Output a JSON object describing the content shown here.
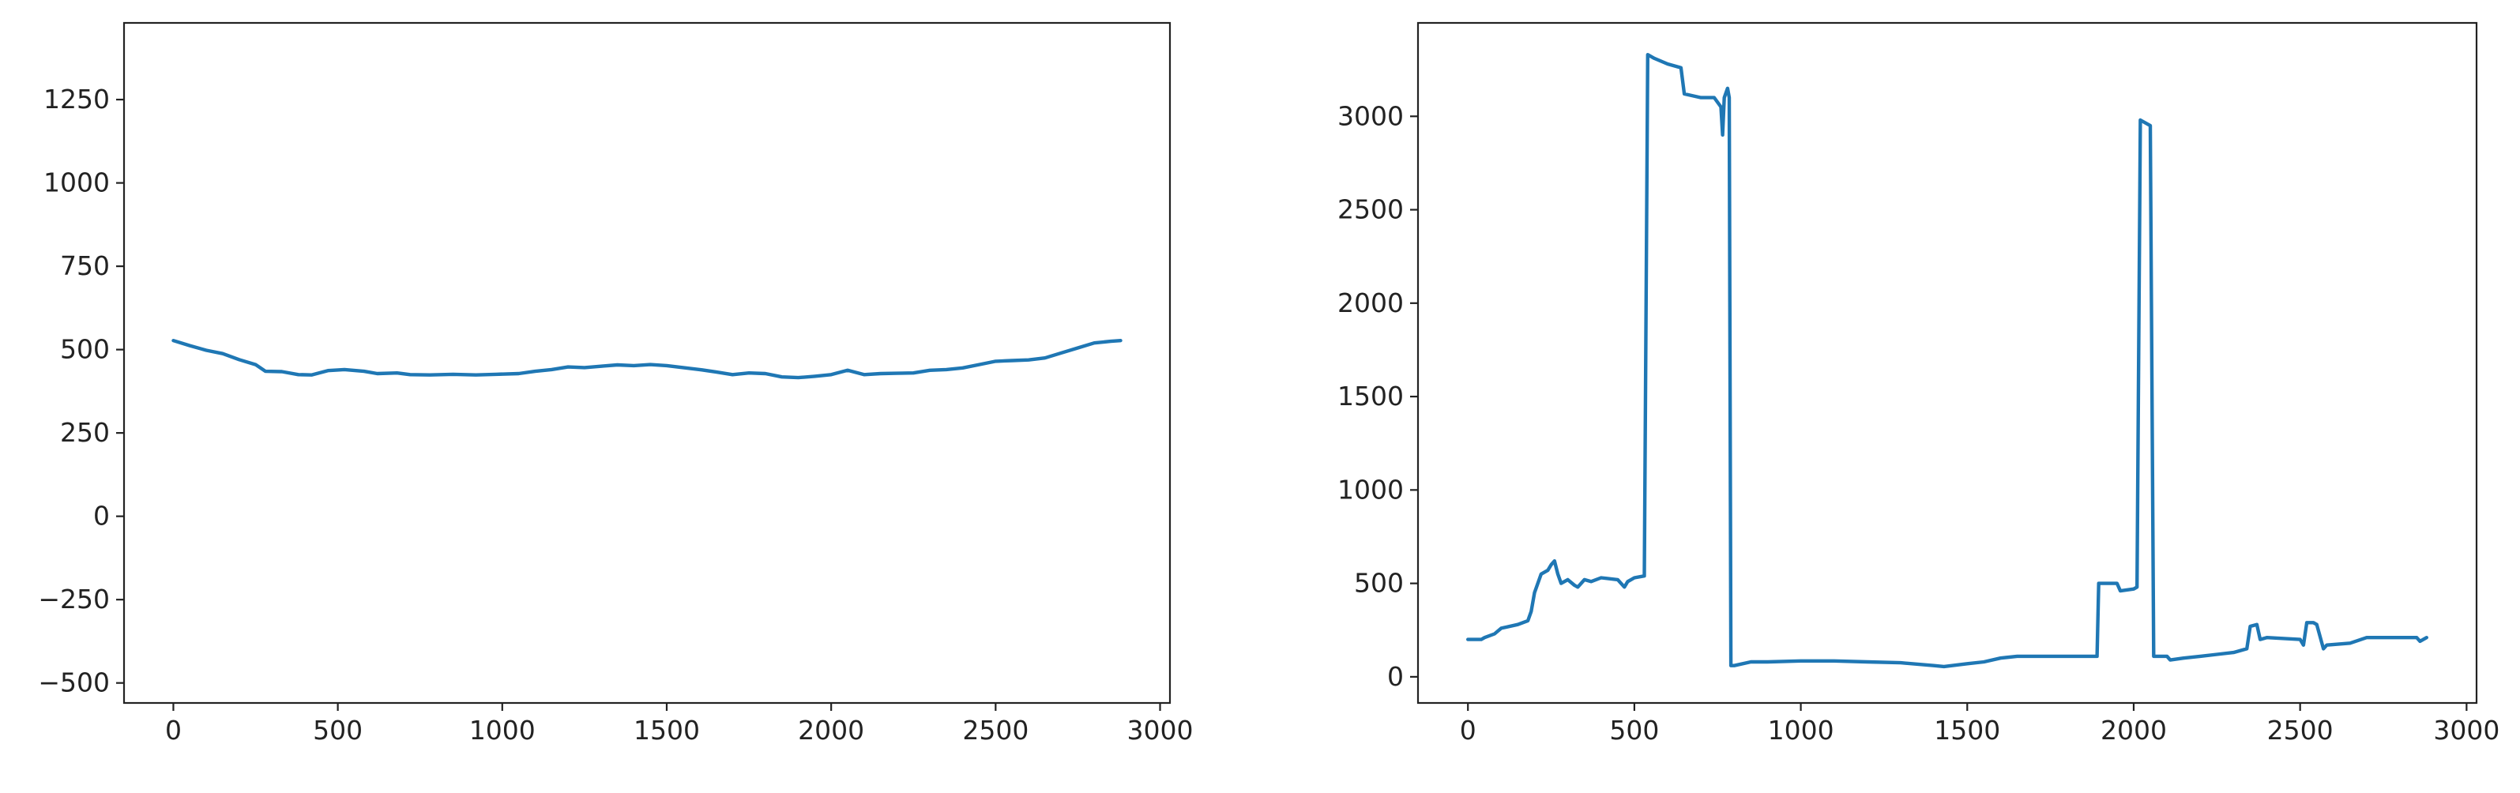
{
  "chart_data": [
    {
      "type": "line",
      "title": "",
      "xlabel": "",
      "ylabel": "",
      "xlim": [
        -150,
        3030
      ],
      "ylim": [
        -560,
        1480
      ],
      "xticks": [
        0,
        500,
        1000,
        1500,
        2000,
        2500,
        3000
      ],
      "xtick_labels": [
        "0",
        "500",
        "1000",
        "1500",
        "2000",
        "2500",
        "3000"
      ],
      "yticks": [
        -500,
        -250,
        0,
        250,
        500,
        750,
        1000,
        1250
      ],
      "ytick_labels": [
        "−500",
        "−250",
        "0",
        "250",
        "500",
        "750",
        "1000",
        "1250"
      ],
      "grid": false,
      "color": "#1f77b4",
      "series": [
        {
          "x": [
            0,
            50,
            100,
            150,
            200,
            250,
            280,
            330,
            380,
            420,
            470,
            520,
            580,
            620,
            680,
            720,
            780,
            850,
            920,
            980,
            1050,
            1100,
            1150,
            1200,
            1250,
            1300,
            1350,
            1400,
            1450,
            1500,
            1550,
            1600,
            1650,
            1700,
            1750,
            1800,
            1850,
            1900,
            1950,
            2000,
            2050,
            2100,
            2150,
            2200,
            2250,
            2300,
            2350,
            2400,
            2450,
            2500,
            2550,
            2600,
            2650,
            2700,
            2750,
            2800,
            2850,
            2880
          ],
          "y": [
            527,
            512,
            498,
            488,
            470,
            455,
            435,
            434,
            425,
            424,
            437,
            440,
            435,
            428,
            430,
            425,
            424,
            426,
            424,
            426,
            428,
            435,
            440,
            448,
            446,
            450,
            454,
            452,
            455,
            452,
            446,
            440,
            433,
            425,
            430,
            428,
            418,
            416,
            420,
            425,
            438,
            425,
            428,
            429,
            430,
            438,
            440,
            445,
            455,
            465,
            467,
            469,
            475,
            490,
            505,
            520,
            525,
            527
          ]
        }
      ]
    },
    {
      "type": "line",
      "title": "",
      "xlabel": "",
      "ylabel": "",
      "xlim": [
        -150,
        3030
      ],
      "ylim": [
        -140,
        3500
      ],
      "xticks": [
        0,
        500,
        1000,
        1500,
        2000,
        2500,
        3000
      ],
      "xtick_labels": [
        "0",
        "500",
        "1000",
        "1500",
        "2000",
        "2500",
        "3000"
      ],
      "yticks": [
        0,
        500,
        1000,
        1500,
        2000,
        2500,
        3000
      ],
      "ytick_labels": [
        "0",
        "500",
        "1000",
        "1500",
        "2000",
        "2500",
        "3000"
      ],
      "grid": false,
      "color": "#1f77b4",
      "series": [
        {
          "x": [
            0,
            40,
            50,
            80,
            100,
            150,
            180,
            190,
            200,
            220,
            240,
            250,
            260,
            270,
            280,
            300,
            320,
            330,
            350,
            370,
            400,
            450,
            470,
            480,
            500,
            530,
            540,
            560,
            600,
            640,
            650,
            700,
            740,
            760,
            765,
            770,
            780,
            785,
            790,
            800,
            850,
            900,
            1000,
            1100,
            1200,
            1300,
            1400,
            1430,
            1500,
            1550,
            1600,
            1650,
            1700,
            1800,
            1890,
            1895,
            1950,
            1960,
            2000,
            2010,
            2020,
            2050,
            2060,
            2100,
            2110,
            2150,
            2200,
            2250,
            2300,
            2340,
            2350,
            2370,
            2380,
            2400,
            2500,
            2510,
            2520,
            2540,
            2550,
            2570,
            2580,
            2650,
            2700,
            2800,
            2850,
            2860,
            2880
          ],
          "y": [
            200,
            200,
            210,
            230,
            260,
            280,
            300,
            350,
            450,
            550,
            570,
            600,
            620,
            550,
            500,
            520,
            490,
            480,
            520,
            510,
            530,
            520,
            480,
            510,
            530,
            540,
            3330,
            3310,
            3280,
            3260,
            3120,
            3100,
            3100,
            3050,
            2900,
            3100,
            3150,
            3100,
            60,
            60,
            80,
            80,
            85,
            85,
            80,
            75,
            60,
            55,
            70,
            80,
            100,
            110,
            110,
            110,
            110,
            500,
            500,
            460,
            470,
            480,
            2980,
            2950,
            110,
            110,
            90,
            100,
            110,
            120,
            130,
            150,
            270,
            280,
            200,
            210,
            200,
            170,
            290,
            290,
            280,
            150,
            170,
            180,
            210,
            210,
            210,
            190,
            210
          ]
        }
      ]
    }
  ]
}
